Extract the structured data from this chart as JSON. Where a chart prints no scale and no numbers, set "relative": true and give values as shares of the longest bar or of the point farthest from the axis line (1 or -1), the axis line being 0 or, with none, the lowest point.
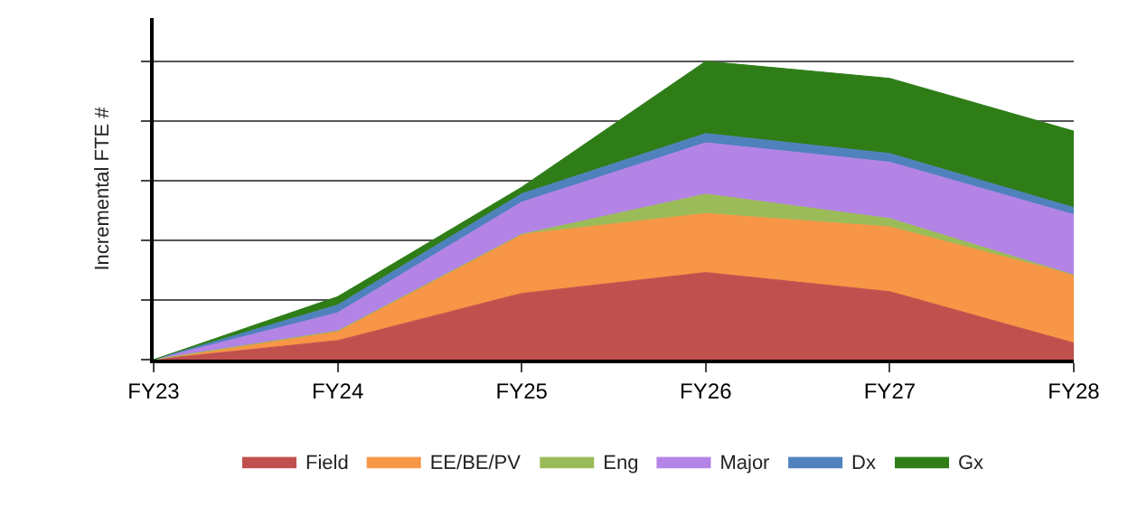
{
  "chart_data": {
    "type": "area",
    "stacked": true,
    "relative": true,
    "ylabel": "Incremental FTE #",
    "grid": "y",
    "legend": "bottom",
    "categories": [
      "FY23",
      "FY24",
      "FY25",
      "FY26",
      "FY27",
      "FY28"
    ],
    "series": [
      {
        "name": "Field",
        "color": "#c0504d",
        "values": [
          0,
          0.064,
          0.222,
          0.292,
          0.228,
          0.056
        ]
      },
      {
        "name": "EE/BE/PV",
        "color": "#f79646",
        "values": [
          0,
          0.032,
          0.198,
          0.198,
          0.217,
          0.228
        ]
      },
      {
        "name": "Eng",
        "color": "#9bbb59",
        "values": [
          0,
          0,
          0,
          0.065,
          0.028,
          0
        ]
      },
      {
        "name": "Major",
        "color": "#b383e6",
        "values": [
          0,
          0.061,
          0.108,
          0.172,
          0.189,
          0.202
        ]
      },
      {
        "name": "Dx",
        "color": "#4f81bd",
        "values": [
          0,
          0.026,
          0.028,
          0.031,
          0.029,
          0.024
        ]
      },
      {
        "name": "Gx",
        "color": "#2e7d17",
        "values": [
          0,
          0.028,
          0.022,
          0.242,
          0.252,
          0.256
        ]
      }
    ]
  }
}
